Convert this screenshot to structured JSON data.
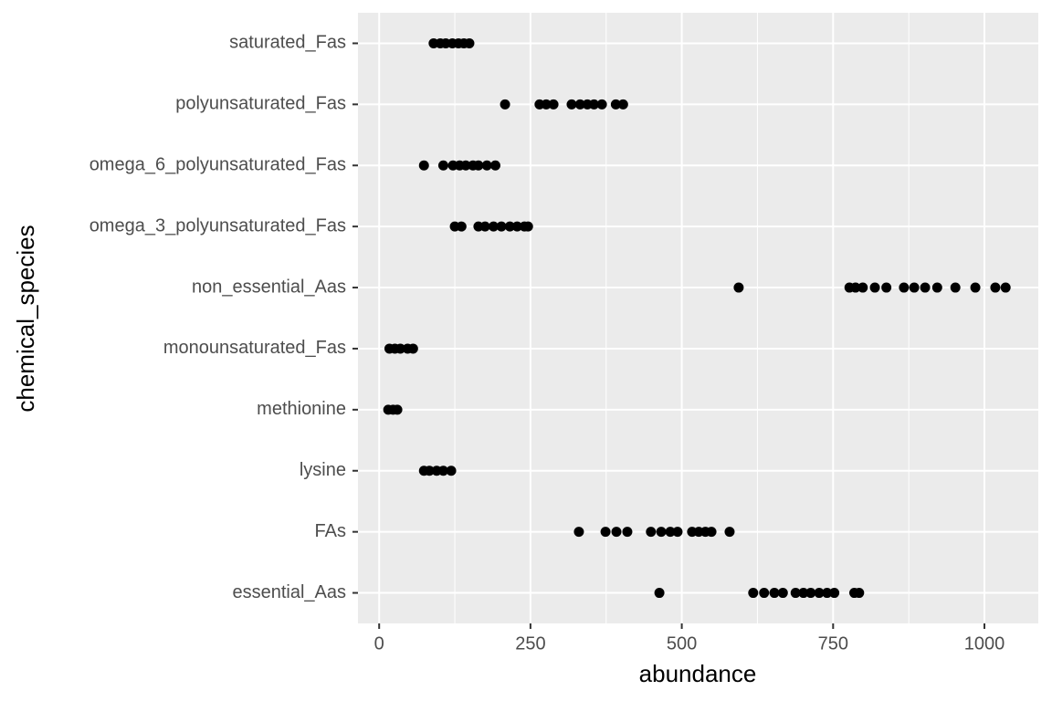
{
  "chart_data": {
    "type": "strip",
    "x_label": "abundance",
    "y_label": "chemical_species",
    "categories": [
      "essential_Aas",
      "FAs",
      "lysine",
      "methionine",
      "monounsaturated_Fas",
      "non_essential_Aas",
      "omega_3_polyunsaturated_Fas",
      "omega_6_polyunsaturated_Fas",
      "polyunsaturated_Fas",
      "saturated_Fas"
    ],
    "values": [
      [
        463,
        618,
        636,
        653,
        667,
        688,
        701,
        713,
        727,
        740,
        752,
        785,
        793
      ],
      [
        330,
        374,
        392,
        410,
        449,
        466,
        481,
        493,
        517,
        528,
        539,
        549,
        579
      ],
      [
        74,
        83,
        95,
        106,
        119
      ],
      [
        15,
        23,
        30
      ],
      [
        17,
        26,
        35,
        47,
        56
      ],
      [
        594,
        777,
        787,
        799,
        819,
        838,
        867,
        884,
        902,
        922,
        952,
        985,
        1018,
        1035
      ],
      [
        125,
        136,
        164,
        175,
        189,
        202,
        216,
        228,
        240,
        246
      ],
      [
        74,
        106,
        122,
        133,
        143,
        155,
        164,
        178,
        192
      ],
      [
        208,
        265,
        276,
        288,
        318,
        332,
        344,
        355,
        368,
        391,
        403
      ],
      [
        90,
        101,
        110,
        121,
        131,
        140,
        149
      ]
    ],
    "color": "#000000",
    "xlim": [
      -35,
      1089
    ],
    "xticks": [
      0,
      250,
      500,
      750,
      1000
    ],
    "grid": true
  }
}
